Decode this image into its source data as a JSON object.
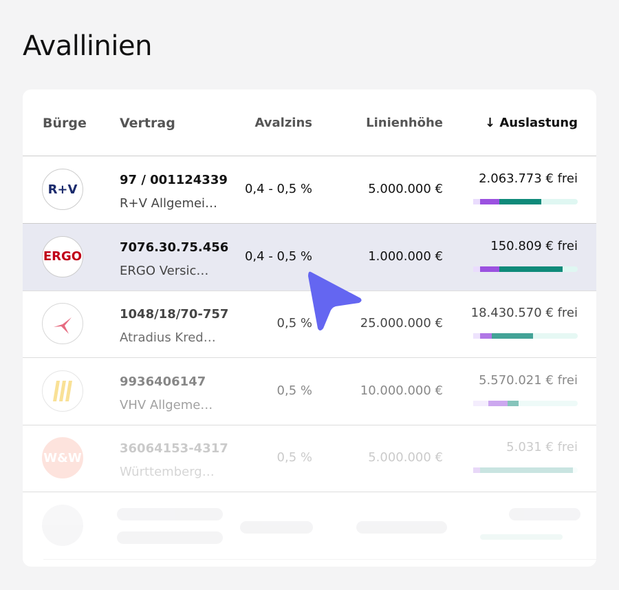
{
  "title": "Avallinien",
  "table": {
    "headers": [
      "Bürge",
      "Vertrag",
      "Avalzins",
      "Linienhöhe",
      "↓ Auslastung"
    ],
    "rows": [
      {
        "logo": "R+V",
        "contract": "97 / 001124339",
        "name": "R+V Allgemei…",
        "rate": "0,4 - 0,5 %",
        "line": "5.000.000 €",
        "free": "2.063.773 € frei"
      },
      {
        "logo": "ERGO",
        "contract": "7076.30.75.456",
        "name": "ERGO Versic…",
        "rate": "0,4 - 0,5 %",
        "line": "1.000.000 €",
        "free": "150.809 € frei"
      },
      {
        "contract": "1048/18/70-757",
        "name": "Atradius Kred…",
        "rate": "0,5 %",
        "line": "25.000.000 €",
        "free": "18.430.570 € frei"
      },
      {
        "contract": "9936406147",
        "name": "VHV Allgeme…",
        "rate": "0,5 %",
        "line": "10.000.000 €",
        "free": "5.570.021 € frei"
      },
      {
        "logo": "W&W",
        "contract": "36064153-4317",
        "name": "Württemberg…",
        "rate": "0,5 %",
        "line": "5.000.000 €",
        "free": "5.031 € frei"
      }
    ]
  }
}
